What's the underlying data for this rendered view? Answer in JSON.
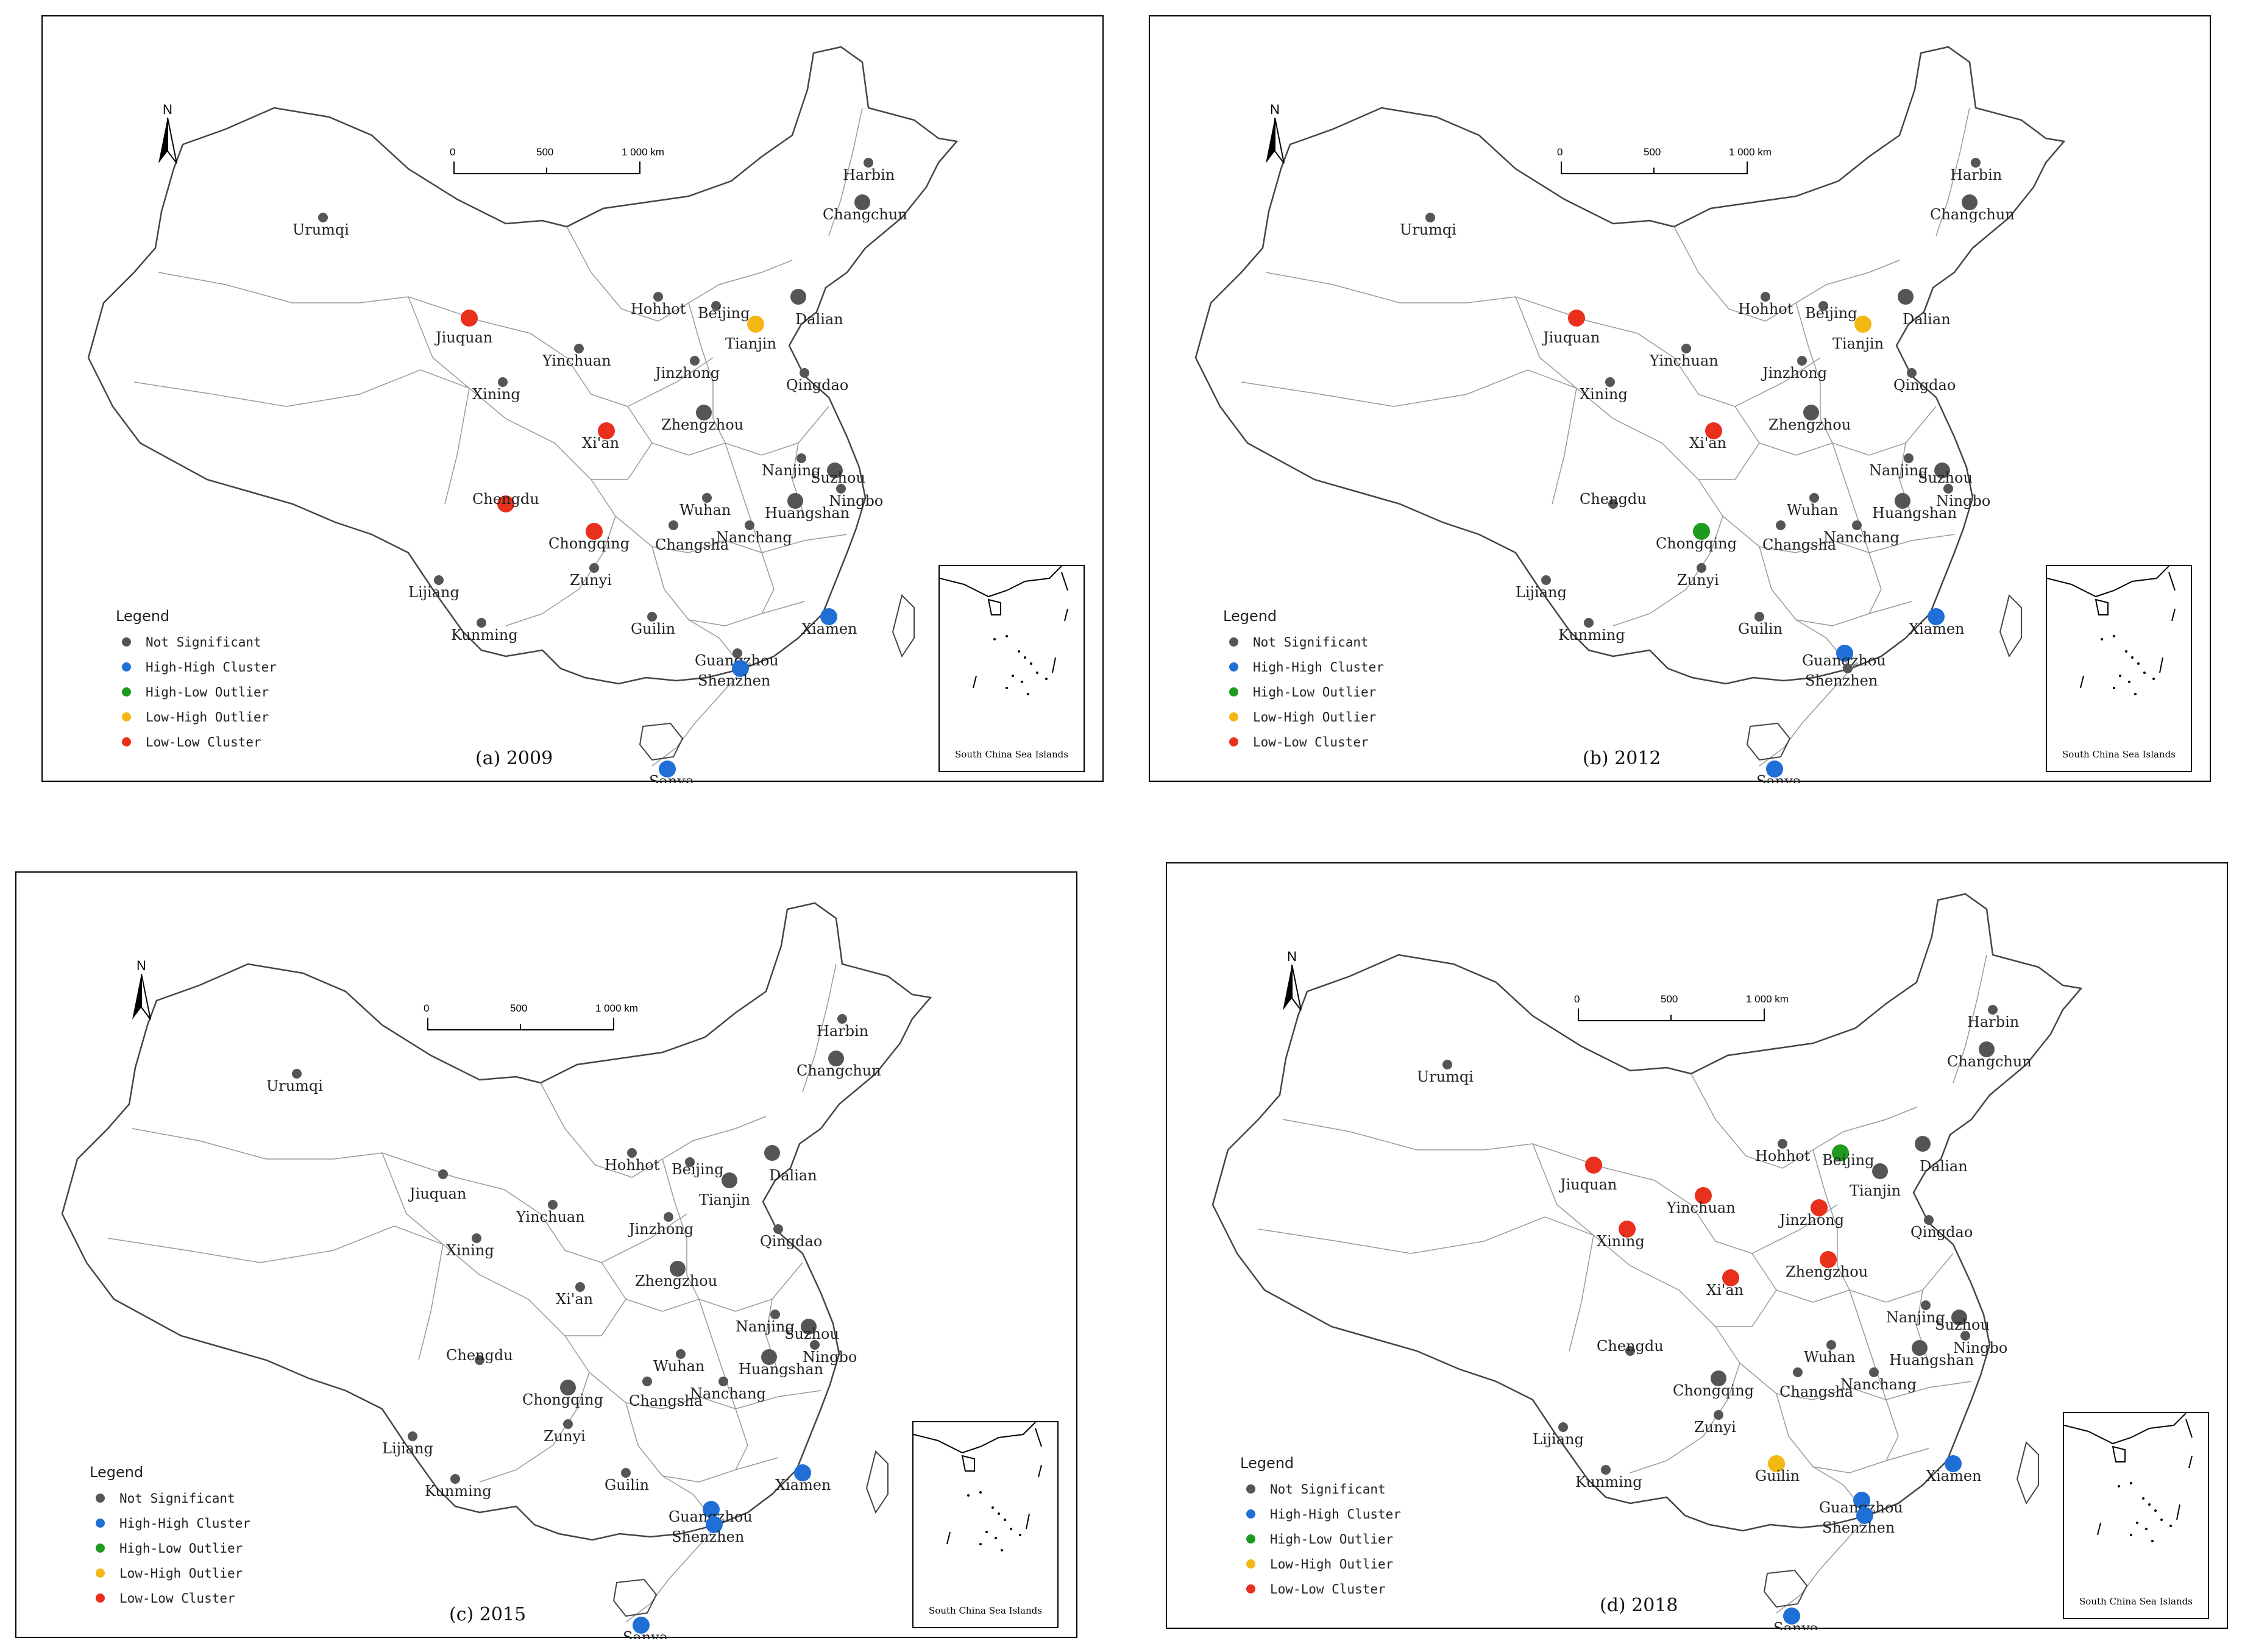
{
  "legend": {
    "title": "Legend",
    "items": [
      {
        "label": "Not Significant",
        "color": "#555555"
      },
      {
        "label": "High-High Cluster",
        "color": "#1f6fd6"
      },
      {
        "label": "High-Low Outlier",
        "color": "#1e9a1e"
      },
      {
        "label": "Low-High Outlier",
        "color": "#f2b713"
      },
      {
        "label": "Low-Low Cluster",
        "color": "#e8301c"
      }
    ]
  },
  "scale": {
    "t0": "0",
    "t1": "500",
    "t2": "1 000 km"
  },
  "north_label": "N",
  "inset_caption": "South China Sea Islands",
  "panels": [
    {
      "caption": "(a) 2009",
      "cities": {
        "Urumqi": "NS",
        "Harbin": "NS",
        "Changchun": "NS",
        "Hohhot": "NS",
        "Beijing": "NS",
        "Dalian": "NS",
        "Tianjin": "LH",
        "Jiuquan": "LL",
        "Yinchuan": "NS",
        "Jinzhong": "NS",
        "Qingdao": "NS",
        "Xining": "NS",
        "Zhengzhou": "NS",
        "Xi'an": "LL",
        "Nanjing": "NS",
        "Suzhou": "NS",
        "Ningbo": "NS",
        "Chengdu": "LL",
        "Chongqing": "LL",
        "Wuhan": "NS",
        "Huangshan": "NS",
        "Changsha": "NS",
        "Nanchang": "NS",
        "Zunyi": "NS",
        "Lijiang": "NS",
        "Kunming": "NS",
        "Guilin": "NS",
        "Xiamen": "HH",
        "Guangzhou": "NS",
        "Shenzhen": "HH",
        "Sanya": "HH"
      }
    },
    {
      "caption": "(b) 2012",
      "cities": {
        "Urumqi": "NS",
        "Harbin": "NS",
        "Changchun": "NS",
        "Hohhot": "NS",
        "Beijing": "NS",
        "Dalian": "NS",
        "Tianjin": "LH",
        "Jiuquan": "LL",
        "Yinchuan": "NS",
        "Jinzhong": "NS",
        "Qingdao": "NS",
        "Xining": "NS",
        "Zhengzhou": "NS",
        "Xi'an": "LL",
        "Nanjing": "NS",
        "Suzhou": "NS",
        "Ningbo": "NS",
        "Chengdu": "NS",
        "Chongqing": "HL",
        "Wuhan": "NS",
        "Huangshan": "NS",
        "Changsha": "NS",
        "Nanchang": "NS",
        "Zunyi": "NS",
        "Lijiang": "NS",
        "Kunming": "NS",
        "Guilin": "NS",
        "Xiamen": "HH",
        "Guangzhou": "HH",
        "Shenzhen": "NS",
        "Sanya": "HH"
      }
    },
    {
      "caption": "(c) 2015",
      "cities": {
        "Urumqi": "NS",
        "Harbin": "NS",
        "Changchun": "NS",
        "Hohhot": "NS",
        "Beijing": "NS",
        "Dalian": "NS",
        "Tianjin": "NS",
        "Jiuquan": "NS",
        "Yinchuan": "NS",
        "Jinzhong": "NS",
        "Qingdao": "NS",
        "Xining": "NS",
        "Zhengzhou": "NS",
        "Xi'an": "NS",
        "Nanjing": "NS",
        "Suzhou": "NS",
        "Ningbo": "NS",
        "Chengdu": "NS",
        "Chongqing": "NS",
        "Wuhan": "NS",
        "Huangshan": "NS",
        "Changsha": "NS",
        "Nanchang": "NS",
        "Zunyi": "NS",
        "Lijiang": "NS",
        "Kunming": "NS",
        "Guilin": "NS",
        "Xiamen": "HH",
        "Guangzhou": "HH",
        "Shenzhen": "HH",
        "Sanya": "HH"
      }
    },
    {
      "caption": "(d) 2018",
      "cities": {
        "Urumqi": "NS",
        "Harbin": "NS",
        "Changchun": "NS",
        "Hohhot": "NS",
        "Beijing": "HL",
        "Dalian": "NS",
        "Tianjin": "NS",
        "Jiuquan": "LL",
        "Yinchuan": "LL",
        "Jinzhong": "LL",
        "Qingdao": "NS",
        "Xining": "LL",
        "Zhengzhou": "LL",
        "Xi'an": "LL",
        "Nanjing": "NS",
        "Suzhou": "NS",
        "Ningbo": "NS",
        "Chengdu": "NS",
        "Chongqing": "NS",
        "Wuhan": "NS",
        "Huangshan": "NS",
        "Changsha": "NS",
        "Nanchang": "NS",
        "Zunyi": "NS",
        "Lijiang": "NS",
        "Kunming": "NS",
        "Guilin": "LH",
        "Xiamen": "HH",
        "Guangzhou": "HH",
        "Shenzhen": "HH",
        "Sanya": "HH"
      }
    }
  ]
}
